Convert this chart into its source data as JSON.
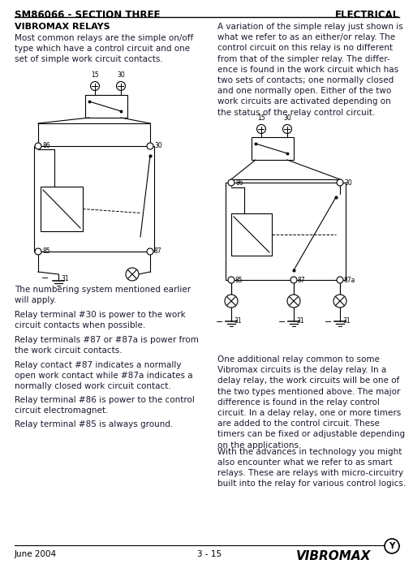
{
  "header_left": "SM86066 - SECTION THREE",
  "header_right": "ELECTRICAL",
  "section_title": "VIBROMAX RELAYS",
  "left_para1": "Most common relays are the simple on/off\ntype which have a control circuit and one\nset of simple work circuit contacts.",
  "left_paras": [
    "The numbering system mentioned earlier\nwill apply.",
    "Relay terminal #30 is power to the work\ncircuit contacts when possible.",
    "Relay terminals #87 or #87a is power from\nthe work circuit contacts.",
    "Relay contact #87 indicates a normally\nopen work contact while #87a indicates a\nnormally closed work circuit contact.",
    "Relay terminal #86 is power to the control\ncircuit electromagnet.",
    "Relay terminal #85 is always ground."
  ],
  "right_para1": "A variation of the simple relay just shown is\nwhat we refer to as an either/or relay. The\ncontrol circuit on this relay is no different\nfrom that of the simpler relay. The differ-\nence is found in the work circuit which has\ntwo sets of contacts; one normally closed\nand one normally open. Either of the two\nwork circuits are activated depending on\nthe status of the relay control circuit.",
  "right_para2": "One additional relay common to some\nVibromax circuits is the delay relay. In a\ndelay relay, the work circuits will be one of\nthe two types mentioned above. The major\ndifference is found in the relay control\ncircuit. In a delay relay, one or more timers\nare added to the control circuit. These\ntimers can be fixed or adjustable depending\non the applications.",
  "right_para3": "With the advances in technology you might\nalso encounter what we refer to as smart\nrelays. These are relays with micro-circuitry\nbuilt into the relay for various control logics.",
  "footer_left": "June 2004",
  "footer_center": "3 - 15",
  "bg_color": "#ffffff",
  "text_color": "#1a1a2e"
}
